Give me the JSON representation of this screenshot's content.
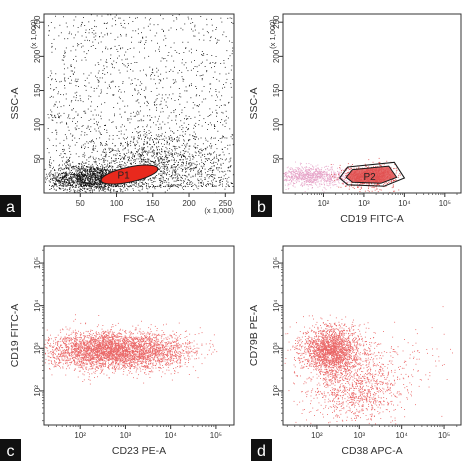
{
  "chart_data": [
    {
      "type": "scatter",
      "panel_letter": "a",
      "xlabel": "FSC-A",
      "ylabel": "SSC-A",
      "x_scale_note": "(x 1,000)",
      "y_scale_note": "(x 1,000)",
      "xscale": "linear",
      "yscale": "linear",
      "xlim": [
        0,
        262
      ],
      "ylim": [
        0,
        262
      ],
      "xticks": [
        50,
        100,
        150,
        200,
        250
      ],
      "yticks": [
        50,
        100,
        150,
        200,
        250
      ],
      "gate": {
        "label": "P1",
        "center": [
          118,
          27
        ],
        "radius": [
          40,
          11
        ],
        "fill": "#e8291d",
        "edge": "#1a1a1a"
      },
      "populations": [
        {
          "kind": "background",
          "x_range": [
            5,
            260
          ],
          "y_range": [
            10,
            262
          ],
          "count": 1800,
          "color": "#1a1a1a"
        },
        {
          "kind": "cluster",
          "center": [
            65,
            22
          ],
          "spread": [
            28,
            10
          ],
          "count": 1400,
          "color": "#111111"
        },
        {
          "kind": "cluster",
          "center": [
            150,
            45
          ],
          "spread": [
            55,
            22
          ],
          "count": 900,
          "color": "#222222"
        }
      ],
      "colors": {
        "dots": "#1a1a1a",
        "gate_fill": "#e8291d"
      }
    },
    {
      "type": "scatter",
      "panel_letter": "b",
      "xlabel": "CD19 FITC-A",
      "ylabel": "SSC-A",
      "y_scale_note": "(x 1,000)",
      "xscale": "log",
      "yscale": "linear",
      "xlim": [
        1,
        5.4
      ],
      "ylim": [
        0,
        262
      ],
      "xticks": [
        "10²",
        "10³",
        "10⁴",
        "10⁵"
      ],
      "xtick_values": [
        2,
        3,
        4,
        5
      ],
      "yticks": [
        50,
        100,
        150,
        200,
        250
      ],
      "gate": {
        "label": "P2",
        "polygon": [
          [
            2.6,
            38
          ],
          [
            3.75,
            45
          ],
          [
            4.0,
            22
          ],
          [
            3.5,
            10
          ],
          [
            2.6,
            12
          ],
          [
            2.4,
            22
          ]
        ],
        "fill": "#e05050",
        "edge": "#1a1a1a"
      },
      "populations": [
        {
          "kind": "cluster",
          "center": [
            1.7,
            25
          ],
          "spread": [
            0.45,
            7
          ],
          "count": 900,
          "color": "#e7a4c8"
        },
        {
          "kind": "cluster",
          "center": [
            3.15,
            25
          ],
          "spread": [
            0.3,
            8
          ],
          "count": 900,
          "color": "#e05050"
        }
      ],
      "colors": {
        "negative": "#e7a4c8",
        "positive": "#e05050"
      }
    },
    {
      "type": "scatter",
      "panel_letter": "c",
      "xlabel": "CD23 PE-A",
      "ylabel": "CD19 FITC-A",
      "xscale": "log",
      "yscale": "log",
      "xlim": [
        1.2,
        5.4
      ],
      "ylim": [
        1.2,
        5.4
      ],
      "xticks": [
        "10²",
        "10³",
        "10⁴",
        "10⁵"
      ],
      "xtick_values": [
        2,
        3,
        4,
        5
      ],
      "yticks": [
        "10²",
        "10³",
        "10⁴",
        "10⁵"
      ],
      "ytick_values": [
        2,
        3,
        4,
        5
      ],
      "populations": [
        {
          "kind": "cluster",
          "center": [
            2.7,
            2.95
          ],
          "spread": [
            0.7,
            0.22
          ],
          "count": 3600,
          "color": "#ea6666"
        },
        {
          "kind": "cluster",
          "center": [
            3.9,
            2.95
          ],
          "spread": [
            0.35,
            0.2
          ],
          "count": 350,
          "color": "#ea6666"
        }
      ],
      "colors": {
        "dots": "#ea6666"
      }
    },
    {
      "type": "scatter",
      "panel_letter": "d",
      "xlabel": "CD38 APC-A",
      "ylabel": "CD79B PE-A",
      "xscale": "log",
      "yscale": "log",
      "xlim": [
        1.2,
        5.4
      ],
      "ylim": [
        1.2,
        5.4
      ],
      "xticks": [
        "10²",
        "10³",
        "10⁴",
        "10⁵"
      ],
      "xtick_values": [
        2,
        3,
        4,
        5
      ],
      "yticks": [
        "10²",
        "10³",
        "10⁴",
        "10⁵"
      ],
      "ytick_values": [
        2,
        3,
        4,
        5
      ],
      "populations": [
        {
          "kind": "cluster",
          "center": [
            2.35,
            2.95
          ],
          "spread": [
            0.35,
            0.28
          ],
          "count": 2200,
          "color": "#ea6666"
        },
        {
          "kind": "cluster",
          "center": [
            2.9,
            2.0
          ],
          "spread": [
            0.55,
            0.35
          ],
          "count": 900,
          "color": "#ea6666"
        },
        {
          "kind": "cluster",
          "center": [
            3.7,
            2.6
          ],
          "spread": [
            0.6,
            0.45
          ],
          "count": 180,
          "color": "#ea6666"
        }
      ],
      "colors": {
        "dots": "#ea6666"
      }
    }
  ]
}
